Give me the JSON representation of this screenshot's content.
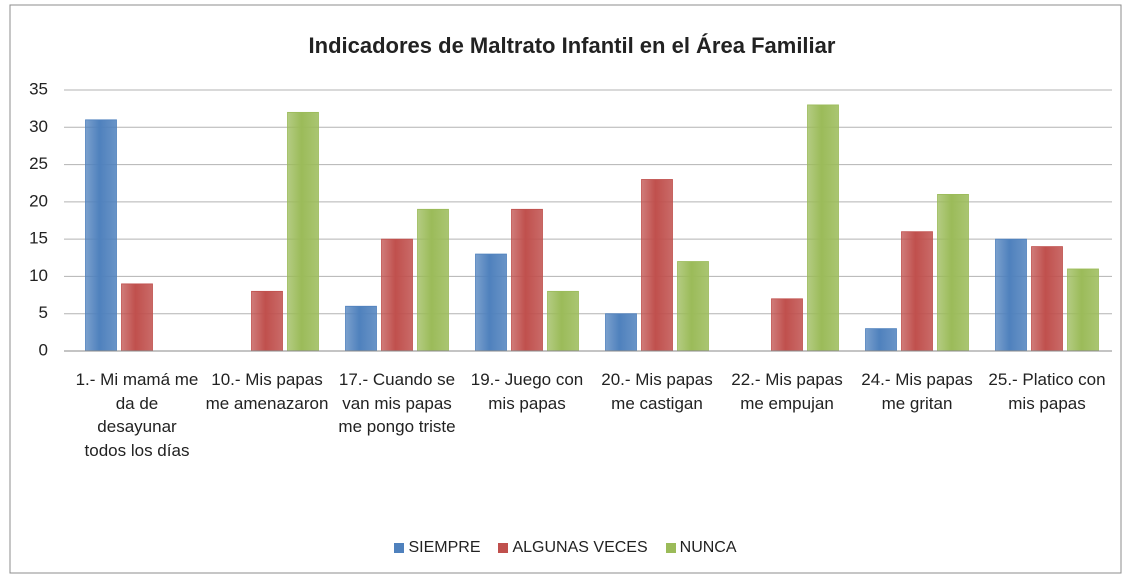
{
  "chart_data": {
    "type": "bar",
    "title": "Indicadores de Maltrato Infantil en el Área Familiar",
    "categories": [
      "1.- Mi  mamá me da de desayunar todos los días",
      "10.- Mis papas me amenazaron",
      "17.-  Cuando se van mis papas me pongo triste",
      "19.- Juego con mis papas",
      "20.- Mis papas me castigan",
      "22.- Mis papas me empujan",
      "24.- Mis papas me gritan",
      "25.- Platico con mis papas"
    ],
    "series": [
      {
        "name": "SIEMPRE",
        "color": "#4f81bd",
        "values": [
          31,
          0,
          6,
          13,
          5,
          0,
          3,
          15
        ]
      },
      {
        "name": "ALGUNAS VECES",
        "color": "#c0504d",
        "values": [
          9,
          8,
          15,
          19,
          23,
          7,
          16,
          14
        ]
      },
      {
        "name": "NUNCA",
        "color": "#9bbb59",
        "values": [
          0,
          32,
          19,
          8,
          12,
          33,
          21,
          11
        ]
      }
    ],
    "ylim": [
      0,
      35
    ],
    "yticks": [
      0,
      5,
      10,
      15,
      20,
      25,
      30,
      35
    ],
    "grid": true,
    "legend": "bottom"
  }
}
